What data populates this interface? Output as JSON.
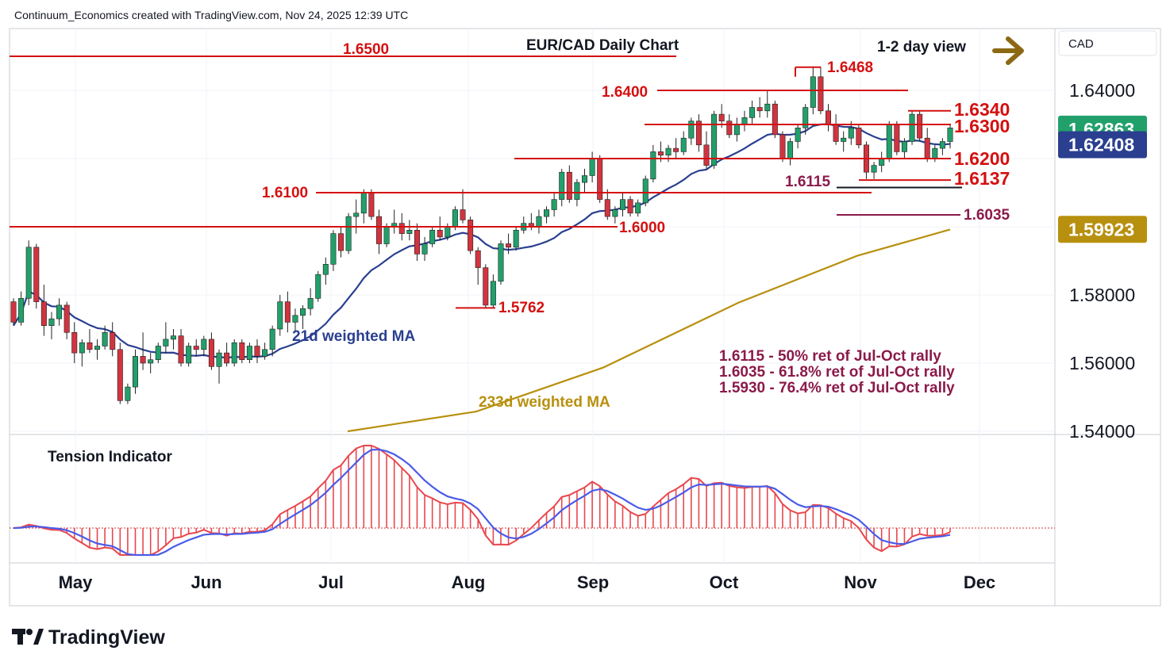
{
  "header": {
    "attribution": "Continuum_Economics created with TradingView.com, Nov 24, 2025 12:39 UTC"
  },
  "chart_title": "EUR/CAD Daily Chart",
  "view": {
    "label": "1-2 day view",
    "icon": "right-arrow-icon",
    "color": "#8b6914"
  },
  "currency": "CAD",
  "branding": {
    "name": "TradingView",
    "icon": "tradingview-logo-icon"
  },
  "colors": {
    "up": "#22a06b",
    "down": "#d1343f",
    "level": "#d41010",
    "ma21": "#2a3f8f",
    "ma233": "#b8900f",
    "note": "#8b1a4a",
    "tension_fill": "#e8474d",
    "tension_signal": "#4a5be8"
  },
  "levels": [
    {
      "label": "1.6500",
      "value": 1.65
    },
    {
      "label": "1.6468",
      "value": 1.6468
    },
    {
      "label": "1.6400",
      "value": 1.64
    },
    {
      "label": "1.6340",
      "value": 1.634
    },
    {
      "label": "1.6300",
      "value": 1.63
    },
    {
      "label": "1.6200",
      "value": 1.62
    },
    {
      "label": "1.6137",
      "value": 1.6137
    },
    {
      "label": "1.6115",
      "value": 1.6115
    },
    {
      "label": "1.6100",
      "value": 1.61
    },
    {
      "label": "1.6035",
      "value": 1.6035
    },
    {
      "label": "1.6000",
      "value": 1.6
    },
    {
      "label": "1.5762",
      "value": 1.5762
    }
  ],
  "ma_labels": {
    "ma21": "21d weighted MA",
    "ma233": "233d weighted MA"
  },
  "notes": [
    "1.6115 - 50% ret of Jul-Oct rally",
    "1.6035 - 61.8% ret of Jul-Oct rally",
    "1.5930 - 76.4% ret of Jul-Oct rally"
  ],
  "price_tags": [
    {
      "label": "1.62863",
      "value": 1.62863,
      "color": "#22a06b"
    },
    {
      "label": "1.62408",
      "value": 1.62408,
      "color": "#2a3f8f"
    },
    {
      "label": "1.59923",
      "value": 1.59923,
      "color": "#b8900f"
    }
  ],
  "indicator": {
    "title": "Tension Indicator"
  },
  "chart_data": {
    "type": "candlestick",
    "title": "EUR/CAD Daily Chart",
    "ylim": [
      1.54,
      1.655
    ],
    "y_ticks": [
      "1.64000",
      "1.58000",
      "1.56000",
      "1.54000"
    ],
    "x_ticks": [
      "May",
      "Jun",
      "Jul",
      "Aug",
      "Sep",
      "Oct",
      "Nov",
      "Dec"
    ],
    "candles": [
      [
        1.578,
        1.579,
        1.571,
        1.572
      ],
      [
        1.572,
        1.581,
        1.571,
        1.579
      ],
      [
        1.579,
        1.596,
        1.577,
        1.594
      ],
      [
        1.594,
        1.595,
        1.576,
        1.578
      ],
      [
        1.578,
        1.583,
        1.568,
        1.571
      ],
      [
        1.571,
        1.575,
        1.567,
        1.573
      ],
      [
        1.573,
        1.579,
        1.571,
        1.577
      ],
      [
        1.577,
        1.578,
        1.567,
        1.569
      ],
      [
        1.569,
        1.572,
        1.56,
        1.563
      ],
      [
        1.563,
        1.567,
        1.559,
        1.566
      ],
      [
        1.566,
        1.57,
        1.563,
        1.564
      ],
      [
        1.564,
        1.567,
        1.561,
        1.565
      ],
      [
        1.565,
        1.571,
        1.564,
        1.569
      ],
      [
        1.569,
        1.572,
        1.562,
        1.564
      ],
      [
        1.564,
        1.566,
        1.548,
        1.549
      ],
      [
        1.549,
        1.554,
        1.548,
        1.553
      ],
      [
        1.553,
        1.564,
        1.551,
        1.562
      ],
      [
        1.562,
        1.569,
        1.558,
        1.56
      ],
      [
        1.56,
        1.563,
        1.557,
        1.561
      ],
      [
        1.561,
        1.566,
        1.56,
        1.565
      ],
      [
        1.565,
        1.572,
        1.563,
        1.567
      ],
      [
        1.567,
        1.57,
        1.564,
        1.568
      ],
      [
        1.568,
        1.57,
        1.559,
        1.56
      ],
      [
        1.56,
        1.566,
        1.559,
        1.565
      ],
      [
        1.565,
        1.567,
        1.562,
        1.564
      ],
      [
        1.564,
        1.568,
        1.562,
        1.567
      ],
      [
        1.567,
        1.569,
        1.558,
        1.559
      ],
      [
        1.559,
        1.564,
        1.554,
        1.563
      ],
      [
        1.563,
        1.566,
        1.559,
        1.56
      ],
      [
        1.56,
        1.567,
        1.559,
        1.566
      ],
      [
        1.566,
        1.567,
        1.56,
        1.561
      ],
      [
        1.561,
        1.566,
        1.56,
        1.565
      ],
      [
        1.565,
        1.567,
        1.56,
        1.562
      ],
      [
        1.562,
        1.566,
        1.561,
        1.564
      ],
      [
        1.564,
        1.571,
        1.562,
        1.57
      ],
      [
        1.57,
        1.58,
        1.568,
        1.578
      ],
      [
        1.578,
        1.581,
        1.569,
        1.572
      ],
      [
        1.572,
        1.576,
        1.569,
        1.574
      ],
      [
        1.574,
        1.577,
        1.57,
        1.576
      ],
      [
        1.576,
        1.582,
        1.574,
        1.579
      ],
      [
        1.579,
        1.587,
        1.578,
        1.586
      ],
      [
        1.586,
        1.591,
        1.583,
        1.589
      ],
      [
        1.589,
        1.599,
        1.587,
        1.598
      ],
      [
        1.598,
        1.6,
        1.591,
        1.593
      ],
      [
        1.593,
        1.604,
        1.592,
        1.603
      ],
      [
        1.603,
        1.608,
        1.598,
        1.604
      ],
      [
        1.604,
        1.611,
        1.601,
        1.61
      ],
      [
        1.61,
        1.611,
        1.602,
        1.603
      ],
      [
        1.603,
        1.605,
        1.592,
        1.595
      ],
      [
        1.595,
        1.601,
        1.594,
        1.6
      ],
      [
        1.6,
        1.605,
        1.598,
        1.601
      ],
      [
        1.601,
        1.604,
        1.596,
        1.598
      ],
      [
        1.598,
        1.602,
        1.596,
        1.599
      ],
      [
        1.599,
        1.601,
        1.59,
        1.592
      ],
      [
        1.592,
        1.597,
        1.59,
        1.595
      ],
      [
        1.595,
        1.6,
        1.594,
        1.599
      ],
      [
        1.599,
        1.603,
        1.596,
        1.597
      ],
      [
        1.597,
        1.601,
        1.596,
        1.6
      ],
      [
        1.6,
        1.606,
        1.599,
        1.605
      ],
      [
        1.605,
        1.611,
        1.601,
        1.602
      ],
      [
        1.602,
        1.603,
        1.592,
        1.593
      ],
      [
        1.593,
        1.594,
        1.583,
        1.588
      ],
      [
        1.588,
        1.589,
        1.576,
        1.577
      ],
      [
        1.577,
        1.586,
        1.576,
        1.584
      ],
      [
        1.584,
        1.596,
        1.583,
        1.595
      ],
      [
        1.595,
        1.598,
        1.592,
        1.594
      ],
      [
        1.594,
        1.6,
        1.593,
        1.599
      ],
      [
        1.599,
        1.603,
        1.598,
        1.601
      ],
      [
        1.601,
        1.604,
        1.599,
        1.6
      ],
      [
        1.6,
        1.605,
        1.598,
        1.603
      ],
      [
        1.603,
        1.606,
        1.601,
        1.605
      ],
      [
        1.605,
        1.61,
        1.603,
        1.608
      ],
      [
        1.608,
        1.617,
        1.606,
        1.616
      ],
      [
        1.616,
        1.618,
        1.607,
        1.608
      ],
      [
        1.608,
        1.614,
        1.606,
        1.613
      ],
      [
        1.613,
        1.617,
        1.61,
        1.615
      ],
      [
        1.615,
        1.622,
        1.613,
        1.62
      ],
      [
        1.62,
        1.621,
        1.607,
        1.608
      ],
      [
        1.608,
        1.611,
        1.602,
        1.603
      ],
      [
        1.603,
        1.606,
        1.601,
        1.605
      ],
      [
        1.605,
        1.61,
        1.603,
        1.608
      ],
      [
        1.608,
        1.609,
        1.603,
        1.604
      ],
      [
        1.604,
        1.608,
        1.603,
        1.607
      ],
      [
        1.607,
        1.615,
        1.606,
        1.614
      ],
      [
        1.614,
        1.624,
        1.613,
        1.622
      ],
      [
        1.622,
        1.625,
        1.619,
        1.621
      ],
      [
        1.621,
        1.624,
        1.619,
        1.623
      ],
      [
        1.623,
        1.626,
        1.62,
        1.622
      ],
      [
        1.622,
        1.628,
        1.621,
        1.626
      ],
      [
        1.626,
        1.632,
        1.624,
        1.631
      ],
      [
        1.631,
        1.633,
        1.622,
        1.624
      ],
      [
        1.624,
        1.628,
        1.617,
        1.618
      ],
      [
        1.618,
        1.634,
        1.617,
        1.633
      ],
      [
        1.633,
        1.636,
        1.629,
        1.631
      ],
      [
        1.631,
        1.633,
        1.626,
        1.627
      ],
      [
        1.627,
        1.632,
        1.625,
        1.63
      ],
      [
        1.63,
        1.634,
        1.628,
        1.632
      ],
      [
        1.632,
        1.637,
        1.63,
        1.635
      ],
      [
        1.635,
        1.638,
        1.632,
        1.634
      ],
      [
        1.634,
        1.64,
        1.632,
        1.636
      ],
      [
        1.636,
        1.637,
        1.626,
        1.627
      ],
      [
        1.627,
        1.628,
        1.619,
        1.62
      ],
      [
        1.62,
        1.626,
        1.618,
        1.625
      ],
      [
        1.625,
        1.63,
        1.623,
        1.629
      ],
      [
        1.629,
        1.636,
        1.627,
        1.635
      ],
      [
        1.635,
        1.647,
        1.633,
        1.644
      ],
      [
        1.644,
        1.647,
        1.633,
        1.634
      ],
      [
        1.634,
        1.636,
        1.628,
        1.63
      ],
      [
        1.63,
        1.633,
        1.624,
        1.625
      ],
      [
        1.625,
        1.628,
        1.622,
        1.626
      ],
      [
        1.626,
        1.631,
        1.624,
        1.629
      ],
      [
        1.629,
        1.63,
        1.623,
        1.624
      ],
      [
        1.624,
        1.625,
        1.614,
        1.616
      ],
      [
        1.616,
        1.619,
        1.614,
        1.618
      ],
      [
        1.618,
        1.622,
        1.616,
        1.62
      ],
      [
        1.62,
        1.631,
        1.619,
        1.63
      ],
      [
        1.63,
        1.631,
        1.621,
        1.622
      ],
      [
        1.622,
        1.626,
        1.62,
        1.625
      ],
      [
        1.625,
        1.634,
        1.624,
        1.633
      ],
      [
        1.633,
        1.634,
        1.625,
        1.626
      ],
      [
        1.626,
        1.629,
        1.619,
        1.62
      ],
      [
        1.62,
        1.624,
        1.619,
        1.623
      ],
      [
        1.623,
        1.626,
        1.621,
        1.625
      ],
      [
        1.625,
        1.63,
        1.623,
        1.629
      ]
    ],
    "ma21_approx": "rising from 1.560 in late Apr to about 1.6241 in late Nov",
    "ma233_approx": "rising from 1.540 in Jul to about 1.5992 in late Nov"
  }
}
